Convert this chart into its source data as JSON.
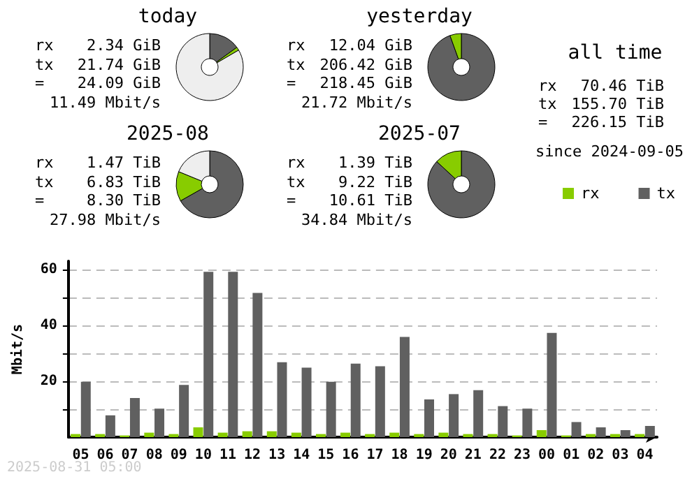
{
  "chart_data": [
    {
      "type": "donut",
      "title": "today",
      "categories": [
        null,
        null,
        null
      ],
      "values": [
        15.0,
        1.6,
        83.4
      ],
      "colors": [
        "#606060",
        "#88cc00",
        "#eeeeee"
      ],
      "annotations": [
        "rx 2.34 GiB",
        "tx 21.74 GiB",
        "= 24.09 GiB",
        "11.49 Mbit/s"
      ]
    },
    {
      "type": "donut",
      "title": "yesterday",
      "categories": [
        null,
        null
      ],
      "values": [
        94.5,
        5.5
      ],
      "colors": [
        "#606060",
        "#88cc00"
      ],
      "annotations": [
        "rx 12.04 GiB",
        "tx 206.42 GiB",
        "= 218.45 GiB",
        "21.72 Mbit/s"
      ]
    },
    {
      "type": "donut",
      "title": "2025-08",
      "categories": [
        null,
        null,
        null
      ],
      "values": [
        66.8,
        14.4,
        18.8
      ],
      "colors": [
        "#606060",
        "#88cc00",
        "#eeeeee"
      ],
      "annotations": [
        "rx 1.47 TiB",
        "tx 6.83 TiB",
        "= 8.30 TiB",
        "27.98 Mbit/s"
      ]
    },
    {
      "type": "donut",
      "title": "2025-07",
      "categories": [
        null,
        null
      ],
      "values": [
        86.9,
        13.1
      ],
      "colors": [
        "#606060",
        "#88cc00"
      ],
      "annotations": [
        "rx 1.39 TiB",
        "tx 9.22 TiB",
        "= 10.61 TiB",
        "34.84 Mbit/s"
      ]
    },
    {
      "type": "other",
      "title": "all time",
      "annotations": [
        "rx 70.46 TiB",
        "tx 155.70 TiB",
        "= 226.15 TiB",
        "since 2024-09-05"
      ]
    },
    {
      "type": "bar",
      "ylabel": "Mbit/s",
      "categories": [
        "05",
        "06",
        "07",
        "08",
        "09",
        "10",
        "11",
        "12",
        "13",
        "14",
        "15",
        "16",
        "17",
        "18",
        "19",
        "20",
        "21",
        "22",
        "23",
        "00",
        "01",
        "02",
        "03",
        "04"
      ],
      "series": [
        {
          "name": "rx",
          "color": "#88cc00",
          "values": [
            1.1,
            1.1,
            0.6,
            1.6,
            1.1,
            3.5,
            1.6,
            2.1,
            2.1,
            1.6,
            1.1,
            1.6,
            1.1,
            1.6,
            1.1,
            1.6,
            1.1,
            1.1,
            0.6,
            2.5,
            0.6,
            1.1,
            1.1,
            1.1
          ]
        },
        {
          "name": "tx",
          "color": "#606060",
          "values": [
            19.8,
            7.8,
            14.0,
            10.2,
            18.7,
            59.2,
            59.2,
            51.6,
            26.8,
            24.9,
            19.8,
            26.3,
            25.4,
            35.9,
            13.5,
            15.4,
            16.8,
            11.1,
            10.2,
            37.3,
            5.4,
            3.5,
            2.5,
            4.0
          ]
        }
      ],
      "ylim": [
        0,
        63
      ],
      "yticks": [
        {
          "value": 10,
          "label": null
        },
        20,
        {
          "value": 30,
          "label": null
        },
        40,
        {
          "value": 50,
          "label": null
        },
        60
      ],
      "grid": "y",
      "legend": "top right",
      "annotations": [
        "2025-08-31 05:00"
      ]
    }
  ]
}
